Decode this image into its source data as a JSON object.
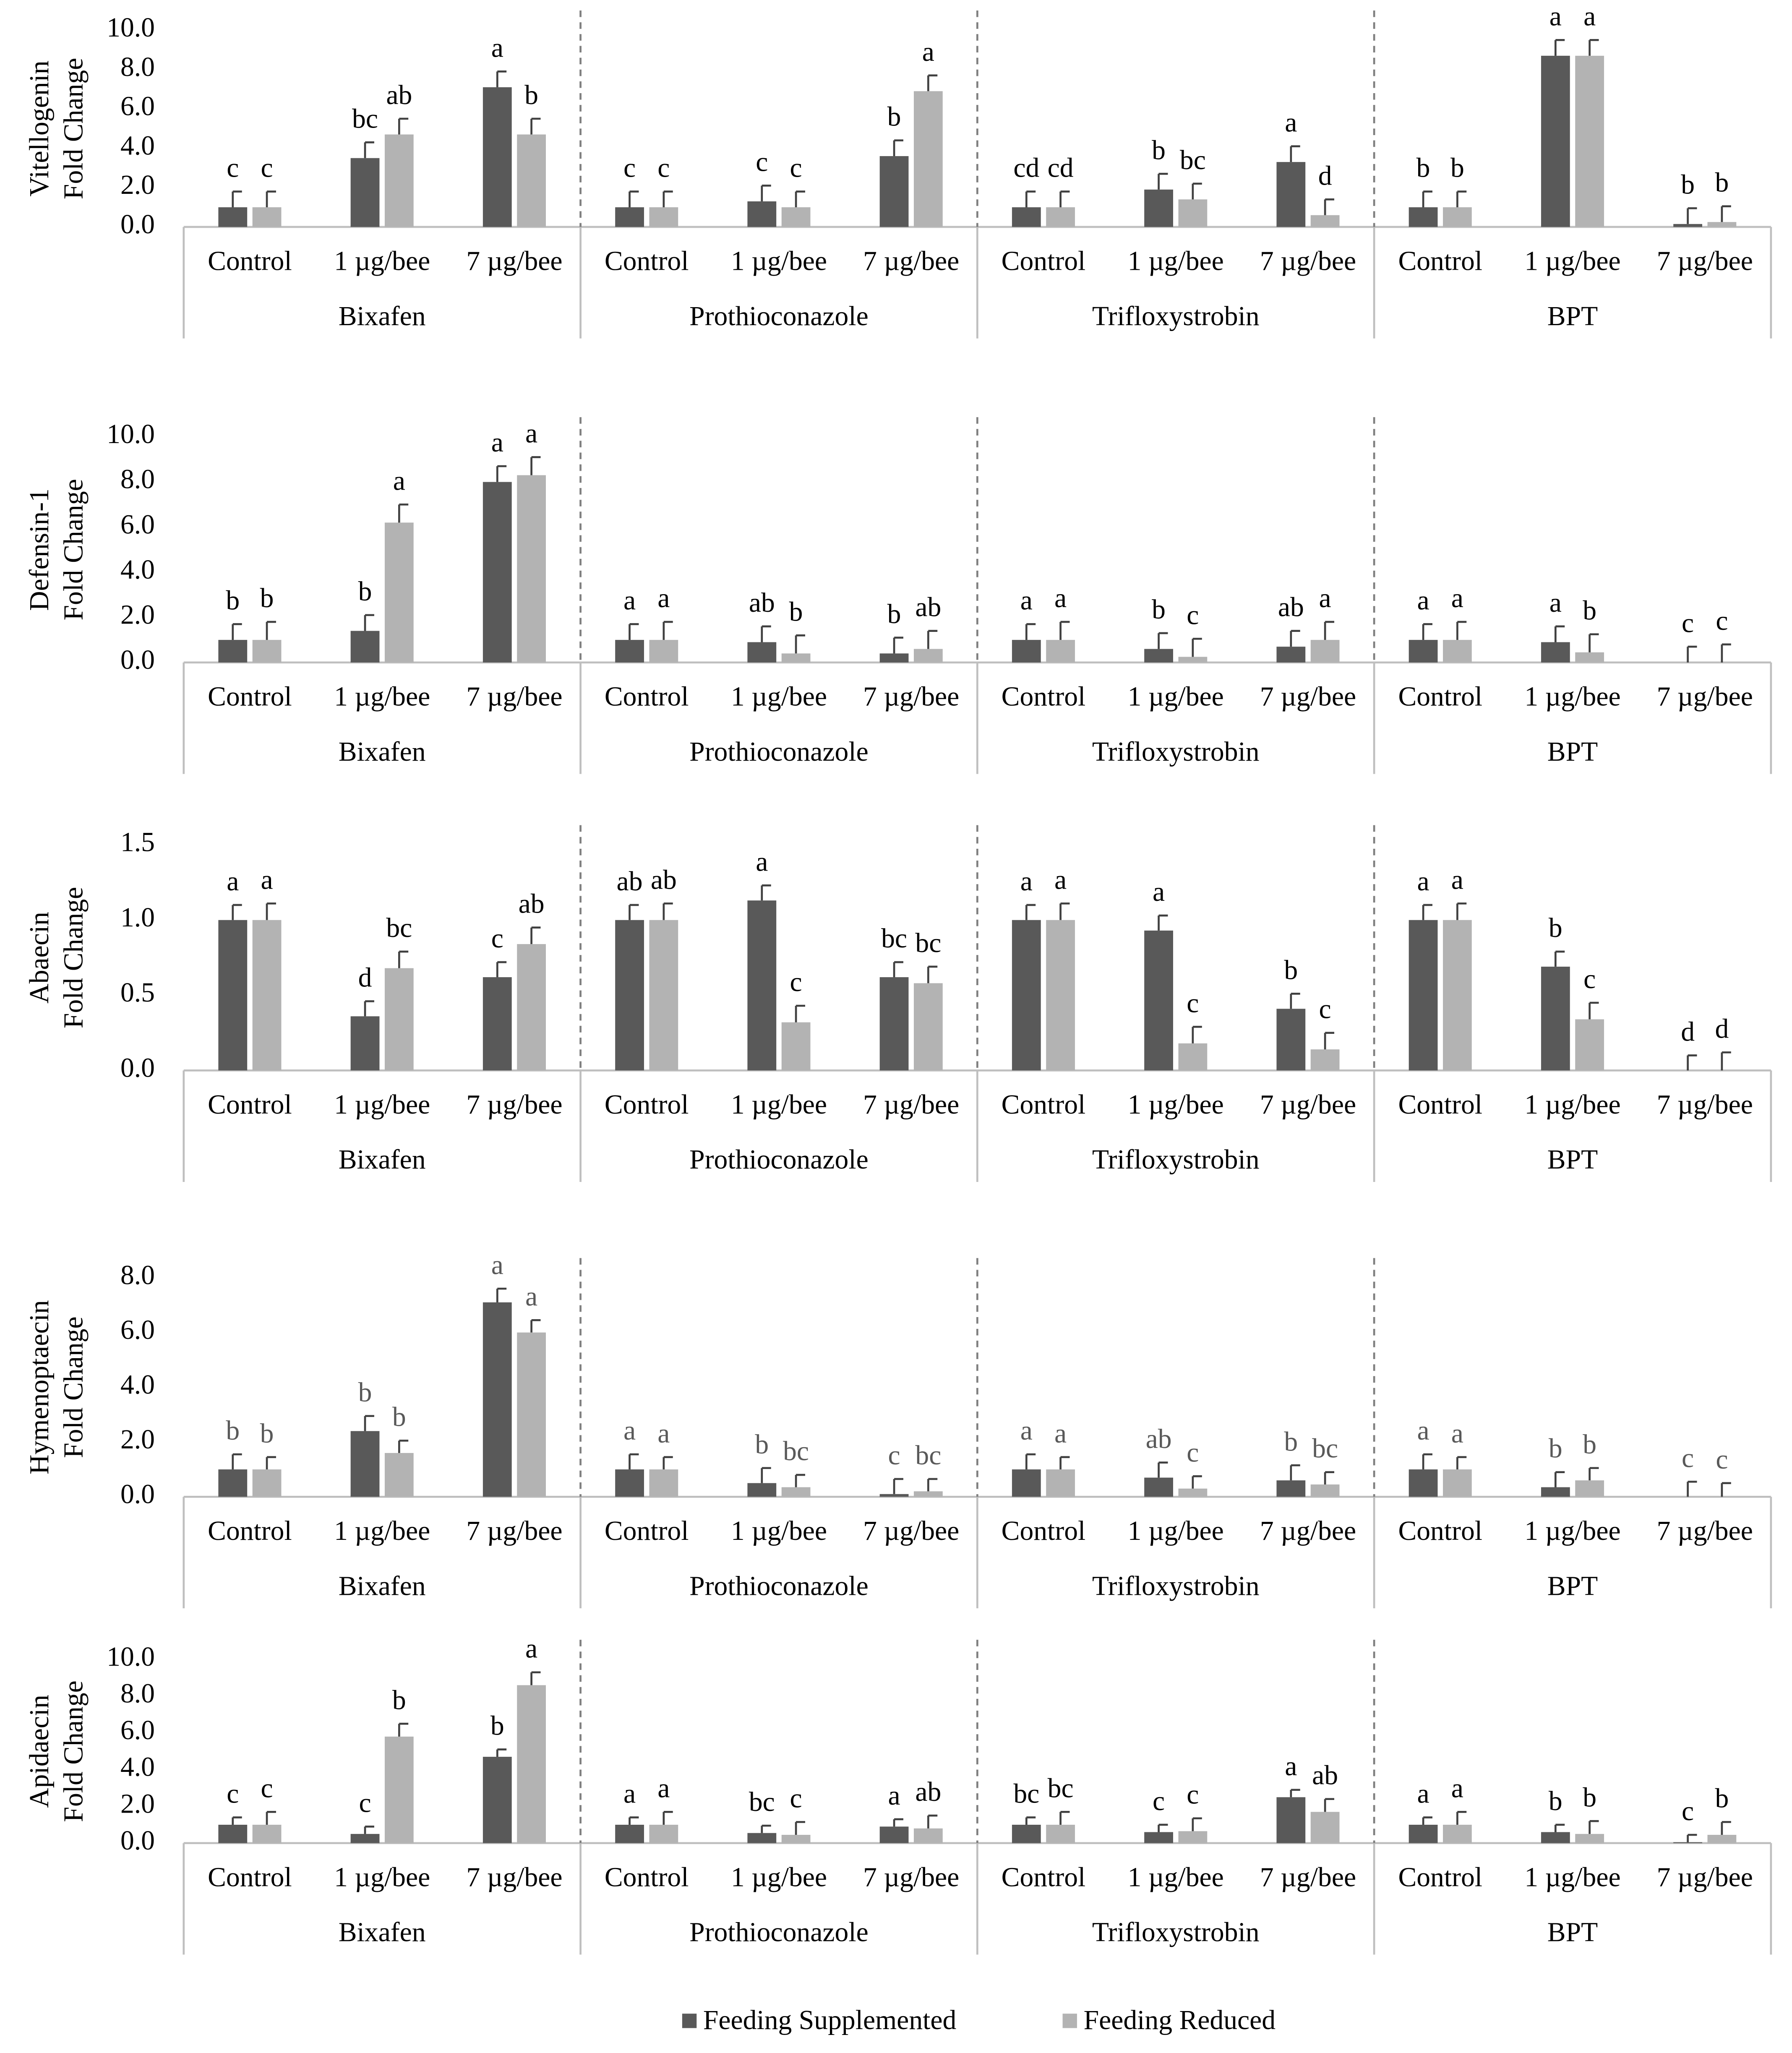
{
  "legend": [
    {
      "name": "Feeding Supplemented",
      "color": "#595959"
    },
    {
      "name": "Feeding Reduced",
      "color": "#b3b3b3"
    }
  ],
  "chart_data": [
    {
      "type": "bar",
      "y_label": [
        "Vitellogenin",
        "Fold Change"
      ],
      "groups": [
        "Bixafen",
        "Prothioconazole",
        "Trifloxystrobin",
        "BPT"
      ],
      "categories": [
        "Control",
        "1 µg/bee",
        "7 µg/bee",
        "Control",
        "1 µg/bee",
        "7 µg/bee",
        "Control",
        "1 µg/bee",
        "7 µg/bee",
        "Control",
        "1 µg/bee",
        "7 µg/bee"
      ],
      "ylim": [
        0,
        10
      ],
      "yticks": [
        {
          "value": 0,
          "label": "0.0"
        },
        {
          "value": 2,
          "label": "2.0"
        },
        {
          "value": 4,
          "label": "4.0"
        },
        {
          "value": 6,
          "label": "6.0"
        },
        {
          "value": 8,
          "label": "8.0"
        },
        {
          "value": 10,
          "label": "10.0"
        }
      ],
      "label_color": "#000000",
      "series": [
        {
          "values": [
            1.0,
            3.5,
            7.1,
            1.0,
            1.3,
            3.6,
            1.0,
            1.9,
            3.3,
            1.0,
            8.7,
            0.15
          ],
          "errors": [
            0.8,
            0.8,
            0.8,
            0.8,
            0.8,
            0.8,
            0.8,
            0.8,
            0.8,
            0.8,
            0.8,
            0.8
          ],
          "labels": [
            "c",
            "bc",
            "a",
            "c",
            "c",
            "b",
            "cd",
            "b",
            "a",
            "b",
            "a",
            "b"
          ]
        },
        {
          "values": [
            1.0,
            4.7,
            4.7,
            1.0,
            1.0,
            6.9,
            1.0,
            1.4,
            0.6,
            1.0,
            8.7,
            0.25
          ],
          "errors": [
            0.8,
            0.8,
            0.8,
            0.8,
            0.8,
            0.8,
            0.8,
            0.8,
            0.8,
            0.8,
            0.8,
            0.8
          ],
          "labels": [
            "c",
            "ab",
            "b",
            "c",
            "c",
            "a",
            "cd",
            "bc",
            "d",
            "b",
            "a",
            "b"
          ]
        }
      ]
    },
    {
      "type": "bar",
      "y_label": [
        "Defensin-1",
        "Fold Change"
      ],
      "groups": [
        "Bixafen",
        "Prothioconazole",
        "Trifloxystrobin",
        "BPT"
      ],
      "categories": [
        "Control",
        "1 µg/bee",
        "7 µg/bee",
        "Control",
        "1 µg/bee",
        "7 µg/bee",
        "Control",
        "1 µg/bee",
        "7 µg/bee",
        "Control",
        "1 µg/bee",
        "7 µg/bee"
      ],
      "ylim": [
        0,
        10
      ],
      "yticks": [
        {
          "value": 0,
          "label": "0.0"
        },
        {
          "value": 2,
          "label": "2.0"
        },
        {
          "value": 4,
          "label": "4.0"
        },
        {
          "value": 6,
          "label": "6.0"
        },
        {
          "value": 8,
          "label": "8.0"
        },
        {
          "value": 10,
          "label": "10.0"
        }
      ],
      "label_color": "#000000",
      "series": [
        {
          "values": [
            1.0,
            1.4,
            8.0,
            1.0,
            0.9,
            0.4,
            1.0,
            0.6,
            0.7,
            1.0,
            0.9,
            0.0
          ],
          "errors": [
            0.7,
            0.7,
            0.7,
            0.7,
            0.7,
            0.7,
            0.7,
            0.7,
            0.7,
            0.7,
            0.7,
            0.7
          ],
          "labels": [
            "b",
            "b",
            "a",
            "a",
            "ab",
            "b",
            "a",
            "b",
            "ab",
            "a",
            "a",
            "c"
          ]
        },
        {
          "values": [
            1.0,
            6.2,
            8.3,
            1.0,
            0.4,
            0.6,
            1.0,
            0.25,
            1.0,
            1.0,
            0.45,
            0.0
          ],
          "errors": [
            0.8,
            0.8,
            0.8,
            0.8,
            0.8,
            0.8,
            0.8,
            0.8,
            0.8,
            0.8,
            0.8,
            0.8
          ],
          "labels": [
            "b",
            "a",
            "a",
            "a",
            "b",
            "ab",
            "a",
            "c",
            "a",
            "a",
            "b",
            "c"
          ]
        }
      ]
    },
    {
      "type": "bar",
      "y_label": [
        "Abaecin",
        "Fold Change"
      ],
      "groups": [
        "Bixafen",
        "Prothioconazole",
        "Trifloxystrobin",
        "BPT"
      ],
      "categories": [
        "Control",
        "1 µg/bee",
        "7 µg/bee",
        "Control",
        "1 µg/bee",
        "7 µg/bee",
        "Control",
        "1 µg/bee",
        "7 µg/bee",
        "Control",
        "1 µg/bee",
        "7 µg/bee"
      ],
      "ylim": [
        0,
        1.5
      ],
      "yticks": [
        {
          "value": 0,
          "label": "0.0"
        },
        0.5,
        {
          "value": 1,
          "label": "1.0"
        },
        1.5
      ],
      "label_color": "#000000",
      "series": [
        {
          "values": [
            1.0,
            0.36,
            0.62,
            1.0,
            1.13,
            0.62,
            1.0,
            0.93,
            0.41,
            1.0,
            0.69,
            0.0
          ],
          "errors": [
            0.1,
            0.1,
            0.1,
            0.1,
            0.1,
            0.1,
            0.1,
            0.1,
            0.1,
            0.1,
            0.1,
            0.1
          ],
          "labels": [
            "a",
            "d",
            "c",
            "ab",
            "a",
            "bc",
            "a",
            "a",
            "b",
            "a",
            "b",
            "d"
          ]
        },
        {
          "values": [
            1.0,
            0.68,
            0.84,
            1.0,
            0.32,
            0.58,
            1.0,
            0.18,
            0.14,
            1.0,
            0.34,
            0.0
          ],
          "errors": [
            0.11,
            0.11,
            0.11,
            0.11,
            0.11,
            0.11,
            0.11,
            0.11,
            0.11,
            0.11,
            0.11,
            0.12
          ],
          "labels": [
            "a",
            "bc",
            "ab",
            "ab",
            "c",
            "bc",
            "a",
            "c",
            "c",
            "a",
            "c",
            "d"
          ]
        }
      ]
    },
    {
      "type": "bar",
      "y_label": [
        "Hymenoptaecin",
        "Fold Change"
      ],
      "groups": [
        "Bixafen",
        "Prothioconazole",
        "Trifloxystrobin",
        "BPT"
      ],
      "categories": [
        "Control",
        "1 µg/bee",
        "7 µg/bee",
        "Control",
        "1 µg/bee",
        "7 µg/bee",
        "Control",
        "1 µg/bee",
        "7 µg/bee",
        "Control",
        "1 µg/bee",
        "7 µg/bee"
      ],
      "ylim": [
        0,
        8
      ],
      "yticks": [
        {
          "value": 0,
          "label": "0.0"
        },
        {
          "value": 2,
          "label": "2.0"
        },
        {
          "value": 4,
          "label": "4.0"
        },
        {
          "value": 6,
          "label": "6.0"
        },
        {
          "value": 8,
          "label": "8.0"
        }
      ],
      "label_color": "#595959",
      "series": [
        {
          "values": [
            1.0,
            2.4,
            7.1,
            1.0,
            0.5,
            0.1,
            1.0,
            0.7,
            0.6,
            1.0,
            0.35,
            0.0
          ],
          "errors": [
            0.55,
            0.55,
            0.5,
            0.55,
            0.55,
            0.55,
            0.55,
            0.55,
            0.55,
            0.55,
            0.55,
            0.55
          ],
          "labels": [
            "b",
            "b",
            "a",
            "a",
            "b",
            "c",
            "a",
            "ab",
            "b",
            "a",
            "b",
            "c"
          ]
        },
        {
          "values": [
            1.0,
            1.6,
            6.0,
            1.0,
            0.35,
            0.2,
            1.0,
            0.3,
            0.45,
            1.0,
            0.6,
            0.0
          ],
          "errors": [
            0.45,
            0.45,
            0.45,
            0.45,
            0.45,
            0.45,
            0.45,
            0.45,
            0.45,
            0.45,
            0.45,
            0.5
          ],
          "labels": [
            "b",
            "b",
            "a",
            "a",
            "bc",
            "bc",
            "a",
            "c",
            "bc",
            "a",
            "b",
            "c"
          ]
        }
      ]
    },
    {
      "type": "bar",
      "y_label": [
        "Apidaecin",
        "Fold Change"
      ],
      "groups": [
        "Bixafen",
        "Prothioconazole",
        "Trifloxystrobin",
        "BPT"
      ],
      "categories": [
        "Control",
        "1 µg/bee",
        "7 µg/bee",
        "Control",
        "1 µg/bee",
        "7 µg/bee",
        "Control",
        "1 µg/bee",
        "7 µg/bee",
        "Control",
        "1 µg/bee",
        "7 µg/bee"
      ],
      "ylim": [
        0,
        10
      ],
      "yticks": [
        {
          "value": 0,
          "label": "0.0"
        },
        {
          "value": 2,
          "label": "2.0"
        },
        {
          "value": 4,
          "label": "4.0"
        },
        {
          "value": 6,
          "label": "6.0"
        },
        {
          "value": 8,
          "label": "8.0"
        },
        {
          "value": 10,
          "label": "10.0"
        }
      ],
      "label_color": "#000000",
      "series": [
        {
          "values": [
            1.0,
            0.5,
            4.7,
            1.0,
            0.55,
            0.9,
            1.0,
            0.6,
            2.5,
            1.0,
            0.6,
            0.05
          ],
          "errors": [
            0.4,
            0.4,
            0.4,
            0.4,
            0.4,
            0.4,
            0.4,
            0.4,
            0.4,
            0.4,
            0.4,
            0.4
          ],
          "labels": [
            "c",
            "c",
            "b",
            "a",
            "bc",
            "a",
            "bc",
            "c",
            "a",
            "a",
            "b",
            "c"
          ]
        },
        {
          "values": [
            1.0,
            5.8,
            8.6,
            1.0,
            0.45,
            0.8,
            1.0,
            0.65,
            1.7,
            1.0,
            0.5,
            0.45
          ],
          "errors": [
            0.7,
            0.7,
            0.7,
            0.7,
            0.7,
            0.7,
            0.7,
            0.7,
            0.7,
            0.7,
            0.7,
            0.7
          ],
          "labels": [
            "c",
            "b",
            "a",
            "a",
            "c",
            "ab",
            "bc",
            "c",
            "ab",
            "a",
            "b",
            "b"
          ]
        }
      ]
    }
  ]
}
